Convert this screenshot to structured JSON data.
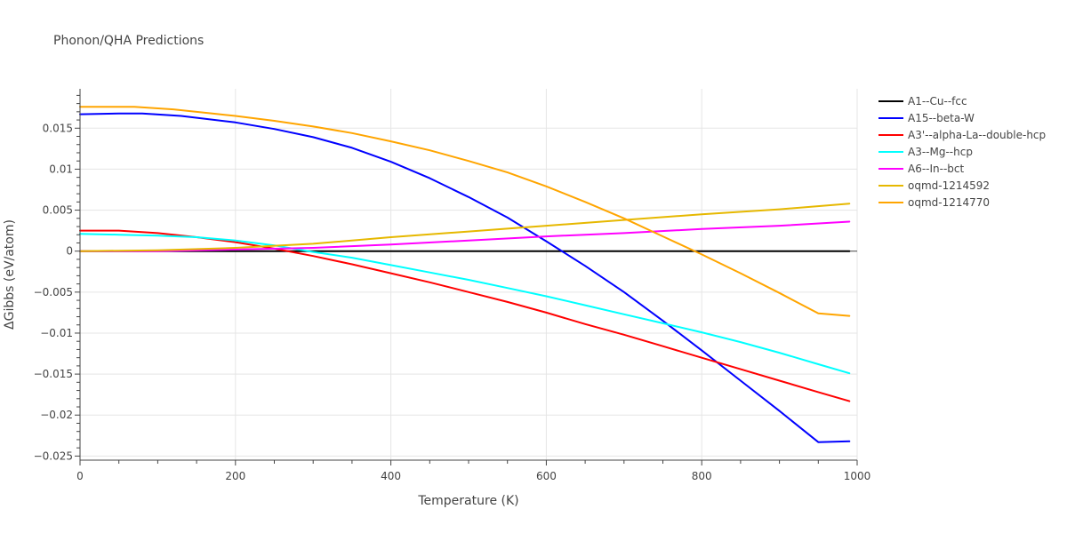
{
  "chart_data": {
    "type": "line",
    "title": "Phonon/QHA Predictions",
    "xlabel": "Temperature (K)",
    "ylabel": "ΔGibbs (eV/atom)",
    "xlim": [
      0,
      1000
    ],
    "ylim": [
      -0.0255,
      0.0198
    ],
    "x_ticks": [
      0,
      200,
      400,
      600,
      800,
      1000
    ],
    "x_tick_labels": [
      "0",
      "200",
      "400",
      "600",
      "800",
      "1000"
    ],
    "y_ticks": [
      0.015,
      0.01,
      0.005,
      0,
      -0.005,
      -0.01,
      -0.015,
      -0.02,
      -0.025
    ],
    "y_tick_labels": [
      "0.015",
      "0.01",
      "0.005",
      "0",
      "−0.005",
      "−0.01",
      "−0.015",
      "−0.02",
      "−0.025"
    ],
    "grid": true,
    "legend_position": "top-right",
    "series": [
      {
        "name": "A1--Cu--fcc",
        "color": "#000000",
        "x": [
          0,
          990
        ],
        "y": [
          0,
          0
        ]
      },
      {
        "name": "A15--beta-W",
        "color": "#0000ff",
        "x": [
          0,
          50,
          80,
          130,
          200,
          250,
          300,
          350,
          400,
          450,
          500,
          550,
          600,
          650,
          700,
          750,
          800,
          850,
          900,
          950,
          990
        ],
        "y": [
          0.0167,
          0.0168,
          0.0168,
          0.0165,
          0.0157,
          0.0149,
          0.0139,
          0.0126,
          0.0109,
          0.0089,
          0.0066,
          0.0041,
          0.0012,
          -0.0018,
          -0.005,
          -0.0085,
          -0.0121,
          -0.0158,
          -0.0195,
          -0.0233,
          -0.0232
        ]
      },
      {
        "name": "A3'--alpha-La--double-hcp",
        "color": "#ff0000",
        "x": [
          0,
          50,
          100,
          150,
          200,
          250,
          300,
          350,
          400,
          450,
          500,
          550,
          600,
          650,
          700,
          750,
          800,
          850,
          900,
          950,
          990
        ],
        "y": [
          0.0025,
          0.0025,
          0.0022,
          0.0017,
          0.0011,
          0.0003,
          -0.0006,
          -0.0016,
          -0.0027,
          -0.0038,
          -0.005,
          -0.0062,
          -0.0075,
          -0.0089,
          -0.0102,
          -0.0116,
          -0.013,
          -0.0144,
          -0.0158,
          -0.0172,
          -0.0183
        ]
      },
      {
        "name": "A3--Mg--hcp",
        "color": "#00ffff",
        "x": [
          0,
          50,
          100,
          150,
          200,
          250,
          300,
          350,
          400,
          450,
          500,
          550,
          600,
          650,
          700,
          750,
          800,
          850,
          900,
          950,
          990
        ],
        "y": [
          0.0021,
          0.002,
          0.0019,
          0.0017,
          0.0013,
          0.0007,
          -0.0001,
          -0.0008,
          -0.0017,
          -0.0026,
          -0.0035,
          -0.0045,
          -0.0055,
          -0.0066,
          -0.0077,
          -0.0088,
          -0.0099,
          -0.0111,
          -0.0124,
          -0.0138,
          -0.0149
        ]
      },
      {
        "name": "A6--In--bct",
        "color": "#ff00ff",
        "x": [
          0,
          100,
          200,
          300,
          400,
          500,
          600,
          700,
          800,
          900,
          990
        ],
        "y": [
          0,
          0,
          0.0002,
          0.0004,
          0.0008,
          0.0013,
          0.0018,
          0.0022,
          0.0027,
          0.0031,
          0.0036
        ]
      },
      {
        "name": "oqmd-1214592",
        "color": "#e6b800",
        "x": [
          0,
          100,
          200,
          300,
          400,
          500,
          600,
          700,
          800,
          900,
          990
        ],
        "y": [
          0,
          0.0001,
          0.0004,
          0.0009,
          0.0017,
          0.0024,
          0.0031,
          0.0038,
          0.0045,
          0.0051,
          0.0058
        ]
      },
      {
        "name": "oqmd-1214770",
        "color": "#ffa500",
        "x": [
          0,
          70,
          120,
          200,
          250,
          300,
          350,
          400,
          450,
          500,
          550,
          600,
          650,
          700,
          750,
          800,
          850,
          900,
          950,
          990
        ],
        "y": [
          0.0176,
          0.0176,
          0.0173,
          0.0165,
          0.0159,
          0.0152,
          0.0144,
          0.0134,
          0.0123,
          0.011,
          0.0096,
          0.0079,
          0.006,
          0.004,
          0.0018,
          -0.0004,
          -0.0027,
          -0.0051,
          -0.0076,
          -0.0079
        ]
      }
    ]
  }
}
